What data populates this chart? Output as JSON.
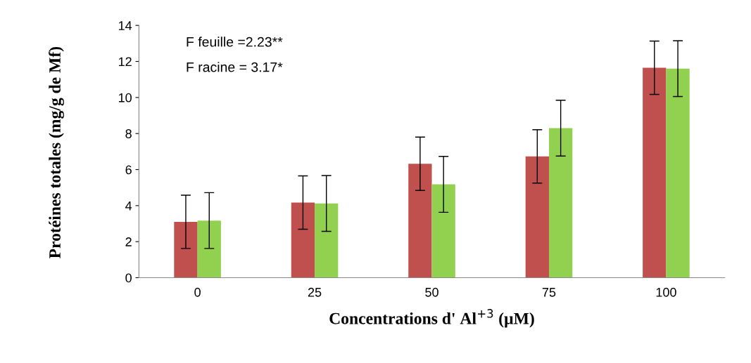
{
  "chart_data": {
    "type": "bar",
    "xlabel": "Concentrations d' Al$^{+3}$ (µM)",
    "ylabel": "Protéines totales (mg/g de Mf)",
    "categories": [
      "0",
      "25",
      "50",
      "75",
      "100"
    ],
    "series": [
      {
        "color": "#c0504d",
        "values": [
          3.1,
          4.17,
          6.32,
          6.73,
          11.65
        ],
        "errors": [
          1.48,
          1.48,
          1.48,
          1.48,
          1.48
        ]
      },
      {
        "color": "#92d050",
        "values": [
          3.17,
          4.12,
          5.18,
          8.3,
          11.6
        ],
        "errors": [
          1.55,
          1.55,
          1.55,
          1.55,
          1.55
        ]
      }
    ],
    "ylim": [
      0,
      14
    ],
    "yticks": [
      0,
      2,
      4,
      6,
      8,
      10,
      12,
      14
    ],
    "grid": false,
    "legend": false,
    "annotations": [
      "F feuille =2.23**",
      "F racine = 3.17*"
    ]
  }
}
